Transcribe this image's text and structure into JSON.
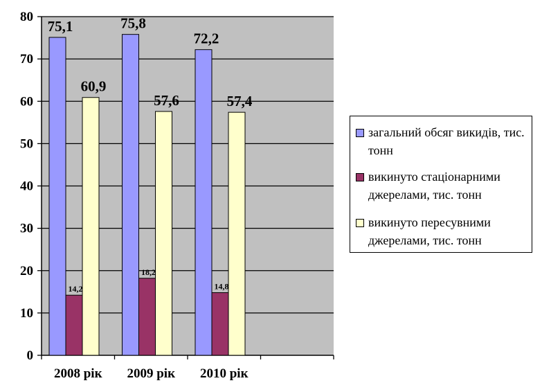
{
  "chart_data": {
    "type": "bar",
    "categories": [
      "2008 рік",
      "2009 рік",
      "2010 рік"
    ],
    "series": [
      {
        "name": "загальний обсяг викидів, тис. тонн",
        "values": [
          75.1,
          75.8,
          72.2
        ],
        "labels": [
          "75,1",
          "75,8",
          "72,2"
        ],
        "color": "#9999ff"
      },
      {
        "name": "викинуто стаціонарними джерелами, тис. тонн",
        "values": [
          14.2,
          18.2,
          14.8
        ],
        "labels": [
          "14,2",
          "18,2",
          "14,8"
        ],
        "color": "#993366"
      },
      {
        "name": "викинуто пересувними джерелами, тис. тонн",
        "values": [
          60.9,
          57.6,
          57.4
        ],
        "labels": [
          "60,9",
          "57,6",
          "57,4"
        ],
        "color": "#ffffcc"
      }
    ],
    "ylim": [
      0,
      80
    ],
    "yticks": [
      "0",
      "10",
      "20",
      "30",
      "40",
      "50",
      "60",
      "70",
      "80"
    ],
    "grid": true,
    "plot_background": "#c0c0c0",
    "legend_position": "right",
    "title": "",
    "xlabel": "",
    "ylabel": ""
  }
}
